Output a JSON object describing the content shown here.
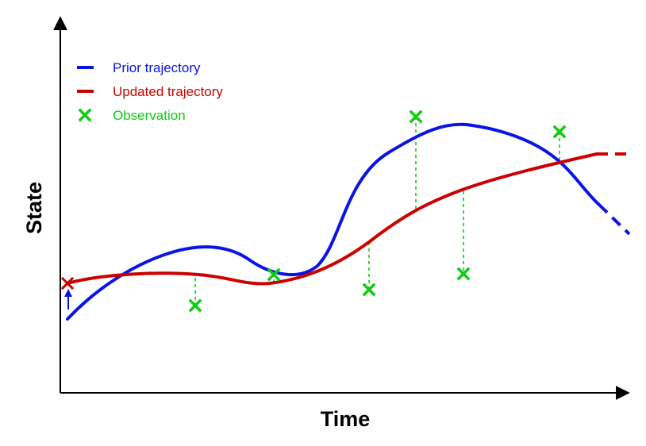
{
  "figure": {
    "xlabel": "Time",
    "ylabel": "State"
  },
  "legend": {
    "placement": "top-left",
    "items": [
      {
        "label": "Prior trajectory",
        "color": "#0a14e6",
        "marker": "dash"
      },
      {
        "label": "Updated trajectory",
        "color": "#cc0000",
        "marker": "dash"
      },
      {
        "label": "Observation",
        "color": "#11cc11",
        "marker": "cross"
      }
    ]
  },
  "colors": {
    "prior": "#0a14e6",
    "updated": "#cc0000",
    "observation": "#11cc11",
    "axis": "#000000"
  }
}
